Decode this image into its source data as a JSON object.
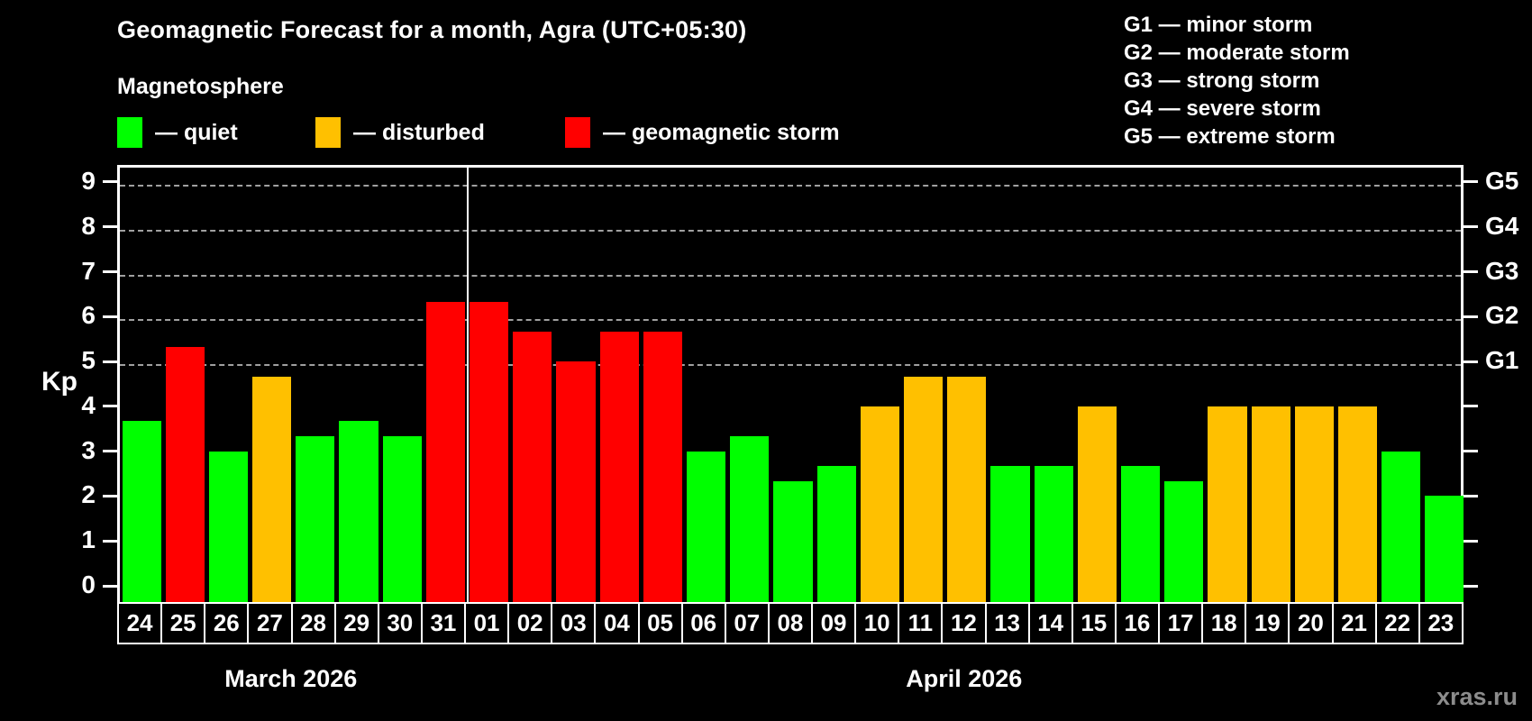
{
  "title": "Geomagnetic Forecast for a month, Agra (UTC+05:30)",
  "subtitle": "Magnetosphere",
  "legend": {
    "items": [
      {
        "status": "quiet",
        "label": "— quiet"
      },
      {
        "status": "disturbed",
        "label": "— disturbed"
      },
      {
        "status": "storm",
        "label": "— geomagnetic storm"
      }
    ]
  },
  "g_legend": [
    "G1 — minor storm",
    "G2 — moderate storm",
    "G3 — strong storm",
    "G4 — severe storm",
    "G5 — extreme storm"
  ],
  "watermark": "xras.ru",
  "chart_data": {
    "type": "bar",
    "title": "Geomagnetic Forecast for a month, Agra (UTC+05:30)",
    "ylabel": "Kp",
    "ylim": [
      0,
      9
    ],
    "y_ticks": [
      0,
      1,
      2,
      3,
      4,
      5,
      6,
      7,
      8,
      9
    ],
    "gridlines": [
      5,
      6,
      7,
      8,
      9
    ],
    "grid_style": "dashed",
    "right_axis_labels": [
      {
        "name": "G1",
        "kp": 5
      },
      {
        "name": "G2",
        "kp": 6
      },
      {
        "name": "G3",
        "kp": 7
      },
      {
        "name": "G4",
        "kp": 8
      },
      {
        "name": "G5",
        "kp": 9
      }
    ],
    "status_colors": {
      "quiet": "#00ff00",
      "disturbed": "#ffc000",
      "storm": "#ff0000"
    },
    "months": [
      {
        "label": "March 2026",
        "days": 8
      },
      {
        "label": "April 2026",
        "days": 23
      }
    ],
    "points": [
      {
        "day": "24",
        "month": "March 2026",
        "kp": 3.67,
        "status": "quiet"
      },
      {
        "day": "25",
        "month": "March 2026",
        "kp": 5.33,
        "status": "storm"
      },
      {
        "day": "26",
        "month": "March 2026",
        "kp": 3.0,
        "status": "quiet"
      },
      {
        "day": "27",
        "month": "March 2026",
        "kp": 4.67,
        "status": "disturbed"
      },
      {
        "day": "28",
        "month": "March 2026",
        "kp": 3.33,
        "status": "quiet"
      },
      {
        "day": "29",
        "month": "March 2026",
        "kp": 3.67,
        "status": "quiet"
      },
      {
        "day": "30",
        "month": "March 2026",
        "kp": 3.33,
        "status": "quiet"
      },
      {
        "day": "31",
        "month": "March 2026",
        "kp": 6.33,
        "status": "storm"
      },
      {
        "day": "01",
        "month": "April 2026",
        "kp": 6.33,
        "status": "storm"
      },
      {
        "day": "02",
        "month": "April 2026",
        "kp": 5.67,
        "status": "storm"
      },
      {
        "day": "03",
        "month": "April 2026",
        "kp": 5.0,
        "status": "storm"
      },
      {
        "day": "04",
        "month": "April 2026",
        "kp": 5.67,
        "status": "storm"
      },
      {
        "day": "05",
        "month": "April 2026",
        "kp": 5.67,
        "status": "storm"
      },
      {
        "day": "06",
        "month": "April 2026",
        "kp": 3.0,
        "status": "quiet"
      },
      {
        "day": "07",
        "month": "April 2026",
        "kp": 3.33,
        "status": "quiet"
      },
      {
        "day": "08",
        "month": "April 2026",
        "kp": 2.33,
        "status": "quiet"
      },
      {
        "day": "09",
        "month": "April 2026",
        "kp": 2.67,
        "status": "quiet"
      },
      {
        "day": "10",
        "month": "April 2026",
        "kp": 4.0,
        "status": "disturbed"
      },
      {
        "day": "11",
        "month": "April 2026",
        "kp": 4.67,
        "status": "disturbed"
      },
      {
        "day": "12",
        "month": "April 2026",
        "kp": 4.67,
        "status": "disturbed"
      },
      {
        "day": "13",
        "month": "April 2026",
        "kp": 2.67,
        "status": "quiet"
      },
      {
        "day": "14",
        "month": "April 2026",
        "kp": 2.67,
        "status": "quiet"
      },
      {
        "day": "15",
        "month": "April 2026",
        "kp": 4.0,
        "status": "disturbed"
      },
      {
        "day": "16",
        "month": "April 2026",
        "kp": 2.67,
        "status": "quiet"
      },
      {
        "day": "17",
        "month": "April 2026",
        "kp": 2.33,
        "status": "quiet"
      },
      {
        "day": "18",
        "month": "April 2026",
        "kp": 4.0,
        "status": "disturbed"
      },
      {
        "day": "19",
        "month": "April 2026",
        "kp": 4.0,
        "status": "disturbed"
      },
      {
        "day": "20",
        "month": "April 2026",
        "kp": 4.0,
        "status": "disturbed"
      },
      {
        "day": "21",
        "month": "April 2026",
        "kp": 4.0,
        "status": "disturbed"
      },
      {
        "day": "22",
        "month": "April 2026",
        "kp": 3.0,
        "status": "quiet"
      },
      {
        "day": "23",
        "month": "April 2026",
        "kp": 2.0,
        "status": "quiet"
      }
    ]
  }
}
